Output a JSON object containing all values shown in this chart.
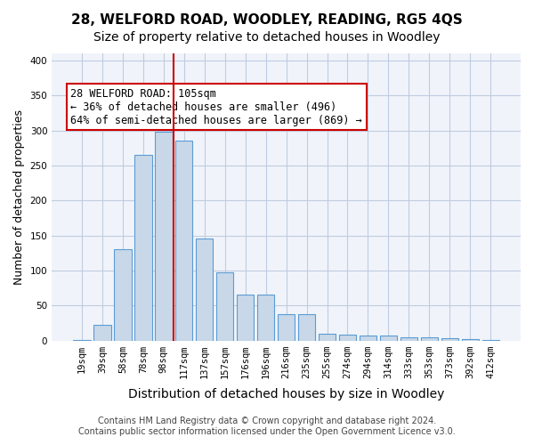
{
  "title": "28, WELFORD ROAD, WOODLEY, READING, RG5 4QS",
  "subtitle": "Size of property relative to detached houses in Woodley",
  "xlabel": "Distribution of detached houses by size in Woodley",
  "ylabel": "Number of detached properties",
  "categories": [
    "19sqm",
    "39sqm",
    "58sqm",
    "78sqm",
    "98sqm",
    "117sqm",
    "137sqm",
    "157sqm",
    "176sqm",
    "196sqm",
    "216sqm",
    "235sqm",
    "255sqm",
    "274sqm",
    "294sqm",
    "314sqm",
    "333sqm",
    "353sqm",
    "373sqm",
    "392sqm",
    "412sqm"
  ],
  "values": [
    1,
    22,
    130,
    265,
    298,
    285,
    145,
    97,
    65,
    65,
    37,
    37,
    10,
    8,
    7,
    7,
    5,
    5,
    3,
    2,
    1
  ],
  "bar_color": "#c8d8e8",
  "bar_edge_color": "#5b9bd5",
  "bar_edge_width": 0.8,
  "property_line_x": 4.5,
  "property_line_color": "#cc0000",
  "annotation_text": "28 WELFORD ROAD: 105sqm\n← 36% of detached houses are smaller (496)\n64% of semi-detached houses are larger (869) →",
  "annotation_box_color": "#ffffff",
  "annotation_box_edge_color": "#cc0000",
  "ylim": [
    0,
    410
  ],
  "yticks": [
    0,
    50,
    100,
    150,
    200,
    250,
    300,
    350,
    400
  ],
  "grid_color": "#c0cce0",
  "background_color": "#f0f4fa",
  "footer_line1": "Contains HM Land Registry data © Crown copyright and database right 2024.",
  "footer_line2": "Contains public sector information licensed under the Open Government Licence v3.0.",
  "title_fontsize": 11,
  "subtitle_fontsize": 10,
  "xlabel_fontsize": 10,
  "ylabel_fontsize": 9,
  "tick_fontsize": 7.5,
  "annotation_fontsize": 8.5,
  "footer_fontsize": 7
}
